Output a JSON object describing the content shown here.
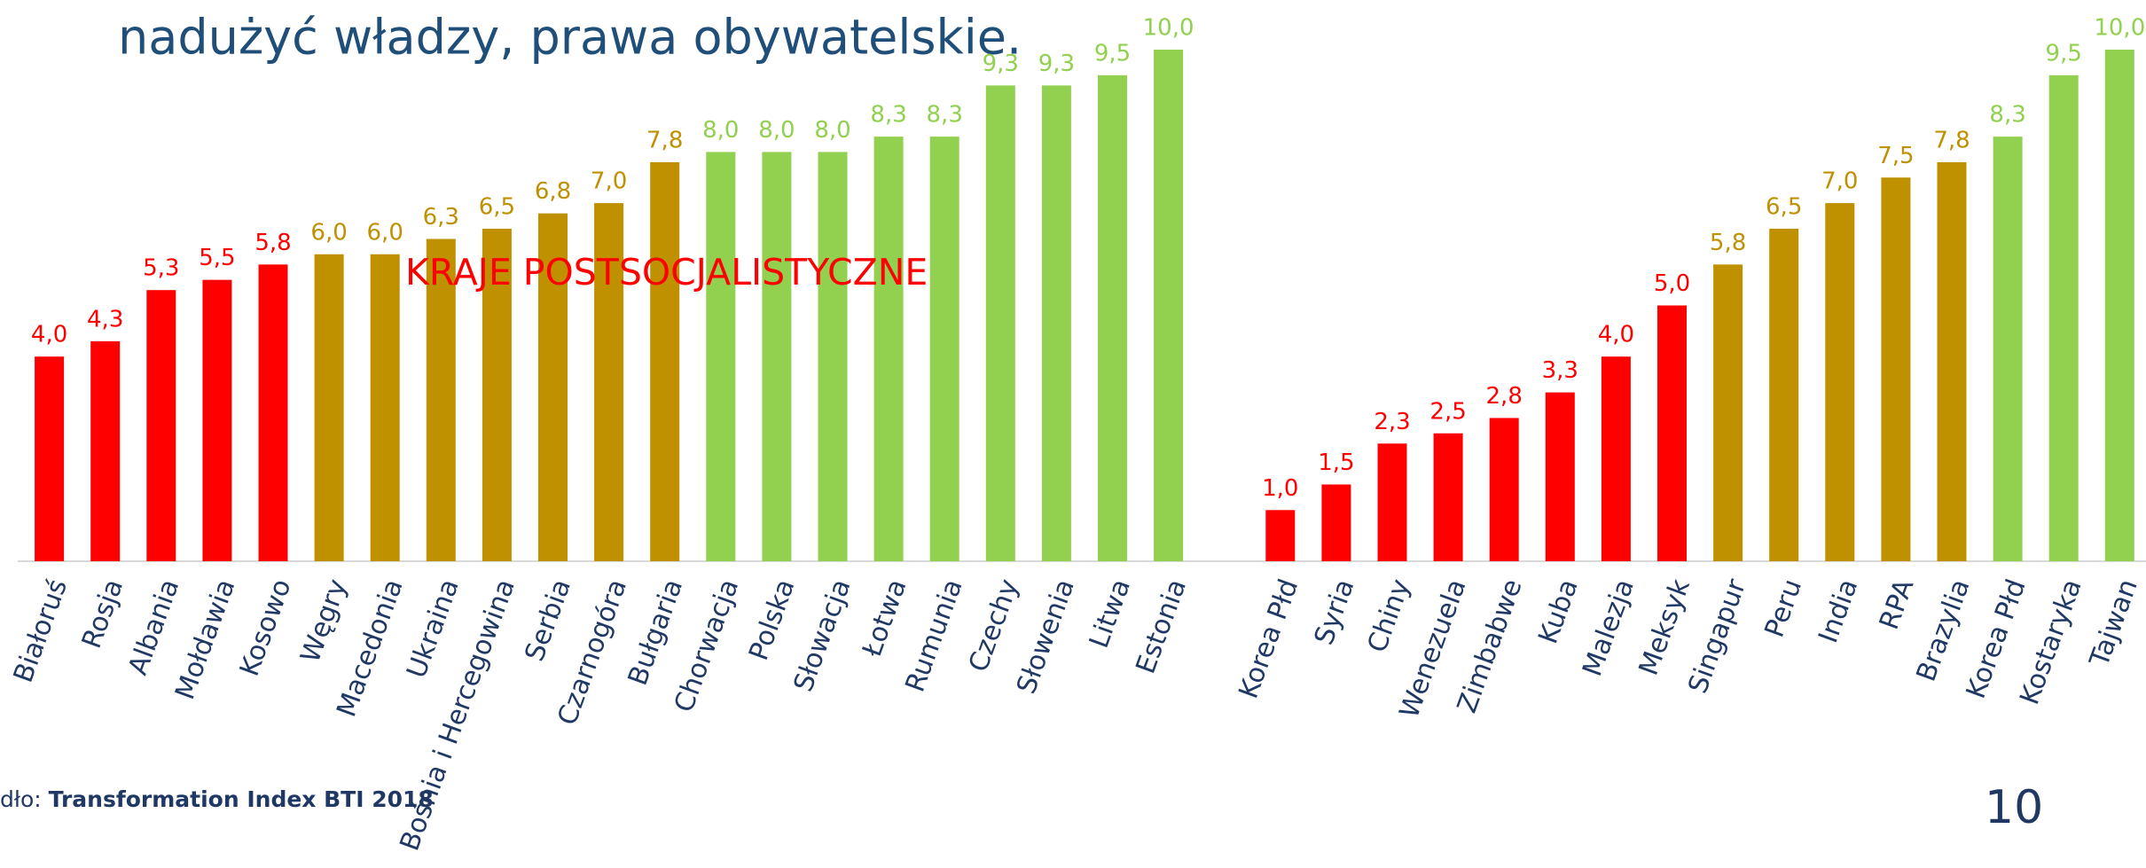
{
  "chart_data": {
    "type": "bar",
    "title": "nadużyć władzy, prawa obywatelskie.",
    "annotation": "KRAJE POSTSOCJALISTYCZNE",
    "source_prefix": "dło:",
    "source": "Transformation Index BTI 2018",
    "page_number": "10",
    "categories": [
      "Białoruś",
      "Rosja",
      "Albania",
      "Mołdawia",
      "Kosowo",
      "Węgry",
      "Macedonia",
      "Ukraina",
      "Bośnia i Hercegowina",
      "Serbia",
      "Czarnogóra",
      "Bułgaria",
      "Chorwacja",
      "Polska",
      "Słowacja",
      "Łotwa",
      "Rumunia",
      "Czechy",
      "Słowenia",
      "Litwa",
      "Estonia",
      null,
      "Korea Płd",
      "Syria",
      "Chiny",
      "Wenezuela",
      "Zimbabwe",
      "Kuba",
      "Malezja",
      "Meksyk",
      "Singapur",
      "Peru",
      "India",
      "RPA",
      "Brazylia",
      "Korea Płd",
      "Kostaryka",
      "Tajwan"
    ],
    "values": [
      4.0,
      4.3,
      5.3,
      5.5,
      5.8,
      6.0,
      6.0,
      6.3,
      6.5,
      6.8,
      7.0,
      7.8,
      8.0,
      8.0,
      8.0,
      8.3,
      8.3,
      9.3,
      9.3,
      9.5,
      10.0,
      null,
      1.0,
      1.5,
      2.3,
      2.5,
      2.8,
      3.3,
      4.0,
      5.0,
      5.8,
      6.5,
      7.0,
      7.5,
      7.8,
      8.3,
      9.5,
      10.0
    ],
    "value_labels": [
      "4,0",
      "4,3",
      "5,3",
      "5,5",
      "5,8",
      "6,0",
      "6,0",
      "6,3",
      "6,5",
      "6,8",
      "7,0",
      "7,8",
      "8,0",
      "8,0",
      "8,0",
      "8,3",
      "8,3",
      "9,3",
      "9,3",
      "9,5",
      "10,0",
      null,
      "1,0",
      "1,5",
      "2,3",
      "2,5",
      "2,8",
      "3,3",
      "4,0",
      "5,0",
      "5,8",
      "6,5",
      "7,0",
      "7,5",
      "7,8",
      "8,3",
      "9,5",
      "10,0"
    ],
    "colors": [
      "#ff0000",
      "#ff0000",
      "#ff0000",
      "#ff0000",
      "#ff0000",
      "#bf9000",
      "#bf9000",
      "#bf9000",
      "#bf9000",
      "#bf9000",
      "#bf9000",
      "#bf9000",
      "#92d050",
      "#92d050",
      "#92d050",
      "#92d050",
      "#92d050",
      "#92d050",
      "#92d050",
      "#92d050",
      "#92d050",
      null,
      "#ff0000",
      "#ff0000",
      "#ff0000",
      "#ff0000",
      "#ff0000",
      "#ff0000",
      "#ff0000",
      "#ff0000",
      "#bf9000",
      "#bf9000",
      "#bf9000",
      "#bf9000",
      "#bf9000",
      "#92d050",
      "#92d050",
      "#92d050"
    ],
    "ylim": [
      0,
      10
    ]
  }
}
